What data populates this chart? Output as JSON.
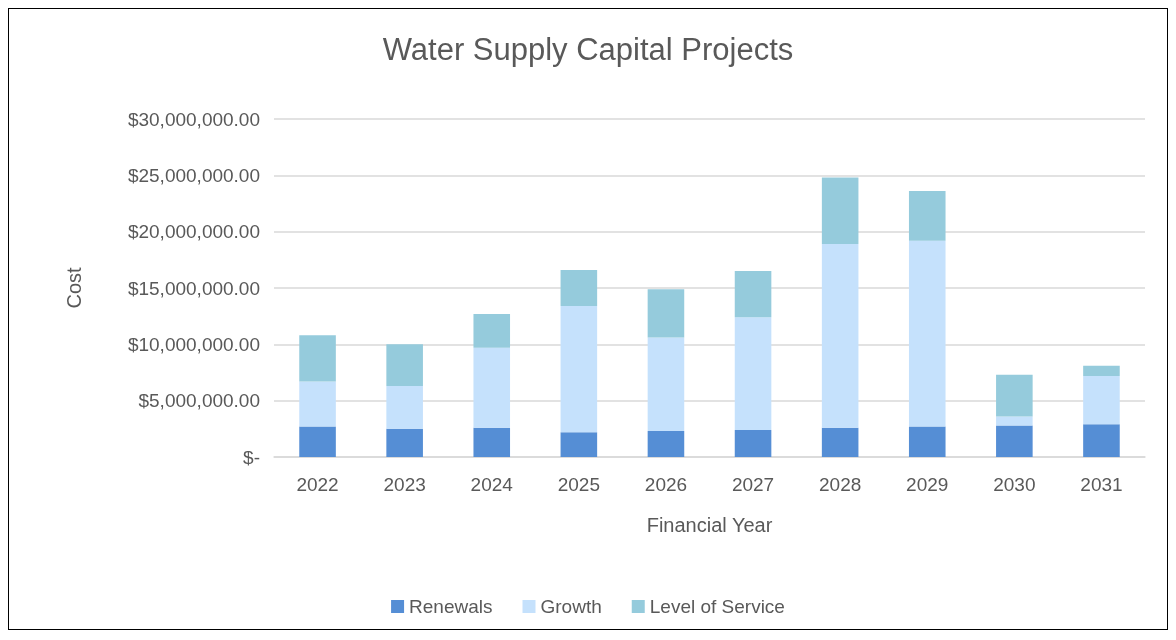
{
  "chart_data": {
    "type": "bar",
    "title": "Water Supply Capital Projects",
    "xlabel": "Financial Year",
    "ylabel": "Cost",
    "categories": [
      "2022",
      "2023",
      "2024",
      "2025",
      "2026",
      "2027",
      "2028",
      "2029",
      "2030",
      "2031"
    ],
    "stacked": true,
    "series": [
      {
        "name": "Renewals",
        "color": "#558ed5",
        "values": [
          2700000,
          2500000,
          2600000,
          2200000,
          2300000,
          2400000,
          2600000,
          2700000,
          2800000,
          2900000
        ]
      },
      {
        "name": "Growth",
        "color": "#c5e1fc",
        "values": [
          4000000,
          3800000,
          7100000,
          11200000,
          8300000,
          10000000,
          16300000,
          16500000,
          800000,
          4300000
        ]
      },
      {
        "name": "Level of Service",
        "color": "#95cbdc",
        "values": [
          4100000,
          3700000,
          3000000,
          3200000,
          4300000,
          4100000,
          5900000,
          4400000,
          3700000,
          900000
        ]
      }
    ],
    "ylim": [
      0,
      30000000
    ],
    "yticks": [
      {
        "value": 0,
        "label": "$-"
      },
      {
        "value": 5000000,
        "label": "$5,000,000.00"
      },
      {
        "value": 10000000,
        "label": "$10,000,000.00"
      },
      {
        "value": 15000000,
        "label": "$15,000,000.00"
      },
      {
        "value": 20000000,
        "label": "$20,000,000.00"
      },
      {
        "value": 25000000,
        "label": "$25,000,000.00"
      },
      {
        "value": 30000000,
        "label": "$30,000,000.00"
      }
    ],
    "grid": "y",
    "legend": "bottom"
  }
}
